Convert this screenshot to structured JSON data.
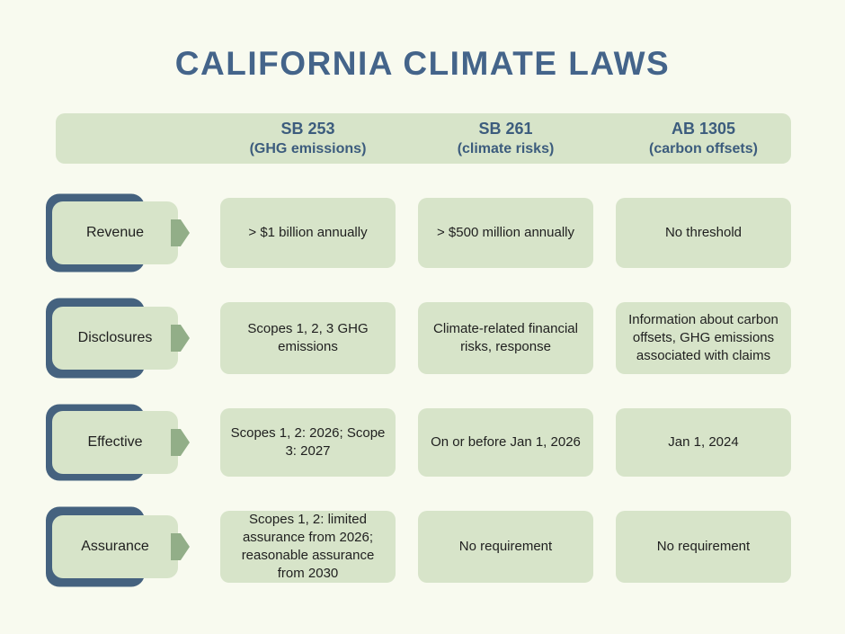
{
  "title": "CALIFORNIA CLIMATE LAWS",
  "columns": [
    {
      "name": "SB 253",
      "subtitle": "(GHG emissions)"
    },
    {
      "name": "SB 261",
      "subtitle": "(climate risks)"
    },
    {
      "name": "AB 1305",
      "subtitle": "(carbon offsets)"
    }
  ],
  "rows": [
    {
      "label": "Revenue",
      "cells": [
        "> $1 billion annually",
        "> $500 million annually",
        "No threshold"
      ]
    },
    {
      "label": "Disclosures",
      "cells": [
        "Scopes 1, 2, 3 GHG emissions",
        "Climate-related financial risks, response",
        "Information about carbon offsets, GHG emissions associated with claims"
      ]
    },
    {
      "label": "Effective",
      "cells": [
        "Scopes 1, 2: 2026; Scope 3: 2027",
        "On or before Jan 1, 2026",
        "Jan 1, 2024"
      ]
    },
    {
      "label": "Assurance",
      "cells": [
        "Scopes 1, 2: limited assurance from 2026; reasonable assurance from 2030",
        "No requirement",
        "No requirement"
      ]
    }
  ],
  "colors": {
    "background": "#f8faef",
    "cell_green": "#d7e4c9",
    "navy": "#45627f",
    "arrow_green": "#92ae88",
    "title_blue": "#44648a",
    "header_text": "#3c5c7d",
    "body_text": "#1f1f1f"
  }
}
